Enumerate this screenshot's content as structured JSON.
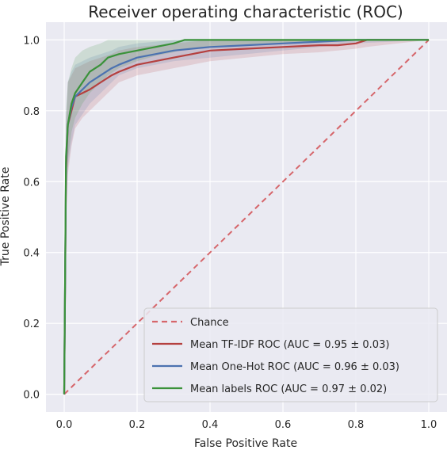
{
  "chart_data": {
    "type": "line",
    "title": "Receiver operating characteristic (ROC)",
    "xlabel": "False Positive Rate",
    "ylabel": "True Positive Rate",
    "xlim": [
      -0.05,
      1.05
    ],
    "ylim": [
      -0.05,
      1.05
    ],
    "xticks": [
      "0.0",
      "0.2",
      "0.4",
      "0.6",
      "0.8",
      "1.0"
    ],
    "yticks": [
      "0.0",
      "0.2",
      "0.4",
      "0.6",
      "0.8",
      "1.0"
    ],
    "grid": true,
    "legend_position": "lower-right",
    "series": [
      {
        "name": "Chance",
        "color": "#d6666b",
        "style": "dashed",
        "x": [
          0,
          1
        ],
        "y": [
          0,
          1
        ]
      },
      {
        "name": "Mean TF-IDF ROC (AUC = 0.95 ± 0.03)",
        "color": "#b5403f",
        "style": "solid",
        "x": [
          0,
          0.005,
          0.01,
          0.02,
          0.03,
          0.05,
          0.07,
          0.1,
          0.13,
          0.15,
          0.2,
          0.25,
          0.3,
          0.35,
          0.4,
          0.5,
          0.6,
          0.7,
          0.75,
          0.8,
          0.83,
          1.0
        ],
        "y": [
          0,
          0.63,
          0.76,
          0.8,
          0.84,
          0.85,
          0.86,
          0.88,
          0.9,
          0.91,
          0.93,
          0.94,
          0.95,
          0.96,
          0.97,
          0.975,
          0.98,
          0.985,
          0.985,
          0.99,
          1.0,
          1.0
        ],
        "band_lower": [
          0,
          0.5,
          0.62,
          0.7,
          0.75,
          0.78,
          0.8,
          0.83,
          0.86,
          0.88,
          0.9,
          0.91,
          0.92,
          0.93,
          0.94,
          0.95,
          0.96,
          0.965,
          0.97,
          0.975,
          0.98,
          1.0
        ],
        "band_upper": [
          0,
          0.76,
          0.88,
          0.9,
          0.92,
          0.93,
          0.94,
          0.95,
          0.96,
          0.97,
          0.98,
          0.985,
          0.99,
          0.995,
          1.0,
          1.0,
          1.0,
          1.0,
          1.0,
          1.0,
          1.0,
          1.0
        ]
      },
      {
        "name": "Mean One-Hot ROC (AUC = 0.96 ± 0.03)",
        "color": "#4c72b0",
        "style": "solid",
        "x": [
          0,
          0.005,
          0.01,
          0.02,
          0.03,
          0.05,
          0.07,
          0.1,
          0.13,
          0.15,
          0.2,
          0.25,
          0.3,
          0.4,
          0.5,
          0.6,
          0.7,
          0.8,
          1.0
        ],
        "y": [
          0,
          0.65,
          0.76,
          0.81,
          0.84,
          0.86,
          0.88,
          0.9,
          0.92,
          0.93,
          0.95,
          0.96,
          0.97,
          0.98,
          0.985,
          0.99,
          0.995,
          1.0,
          1.0
        ],
        "band_lower": [
          0,
          0.52,
          0.64,
          0.71,
          0.76,
          0.79,
          0.82,
          0.85,
          0.88,
          0.9,
          0.92,
          0.93,
          0.94,
          0.95,
          0.96,
          0.97,
          0.98,
          0.99,
          1.0
        ],
        "band_upper": [
          0,
          0.78,
          0.88,
          0.91,
          0.93,
          0.94,
          0.95,
          0.96,
          0.97,
          0.98,
          0.99,
          0.995,
          1.0,
          1.0,
          1.0,
          1.0,
          1.0,
          1.0,
          1.0
        ]
      },
      {
        "name": "Mean labels ROC (AUC = 0.97 ± 0.02)",
        "color": "#3a923a",
        "style": "solid",
        "x": [
          0,
          0.005,
          0.01,
          0.02,
          0.03,
          0.05,
          0.07,
          0.1,
          0.12,
          0.15,
          0.2,
          0.25,
          0.3,
          0.33,
          0.4,
          0.5,
          0.6,
          0.7,
          0.75,
          0.8,
          1.0
        ],
        "y": [
          0,
          0.67,
          0.76,
          0.82,
          0.85,
          0.88,
          0.91,
          0.93,
          0.95,
          0.96,
          0.97,
          0.98,
          0.99,
          1.0,
          1.0,
          1.0,
          1.0,
          1.0,
          1.0,
          1.0,
          1.0
        ],
        "band_lower": [
          0,
          0.55,
          0.66,
          0.74,
          0.78,
          0.82,
          0.85,
          0.88,
          0.9,
          0.92,
          0.94,
          0.955,
          0.965,
          0.975,
          0.98,
          0.985,
          0.99,
          0.995,
          1.0,
          1.0,
          1.0
        ],
        "band_upper": [
          0,
          0.8,
          0.88,
          0.92,
          0.95,
          0.97,
          0.98,
          0.99,
          1.0,
          1.0,
          1.0,
          1.0,
          1.0,
          1.0,
          1.0,
          1.0,
          1.0,
          1.0,
          1.0,
          1.0,
          1.0
        ]
      }
    ]
  }
}
